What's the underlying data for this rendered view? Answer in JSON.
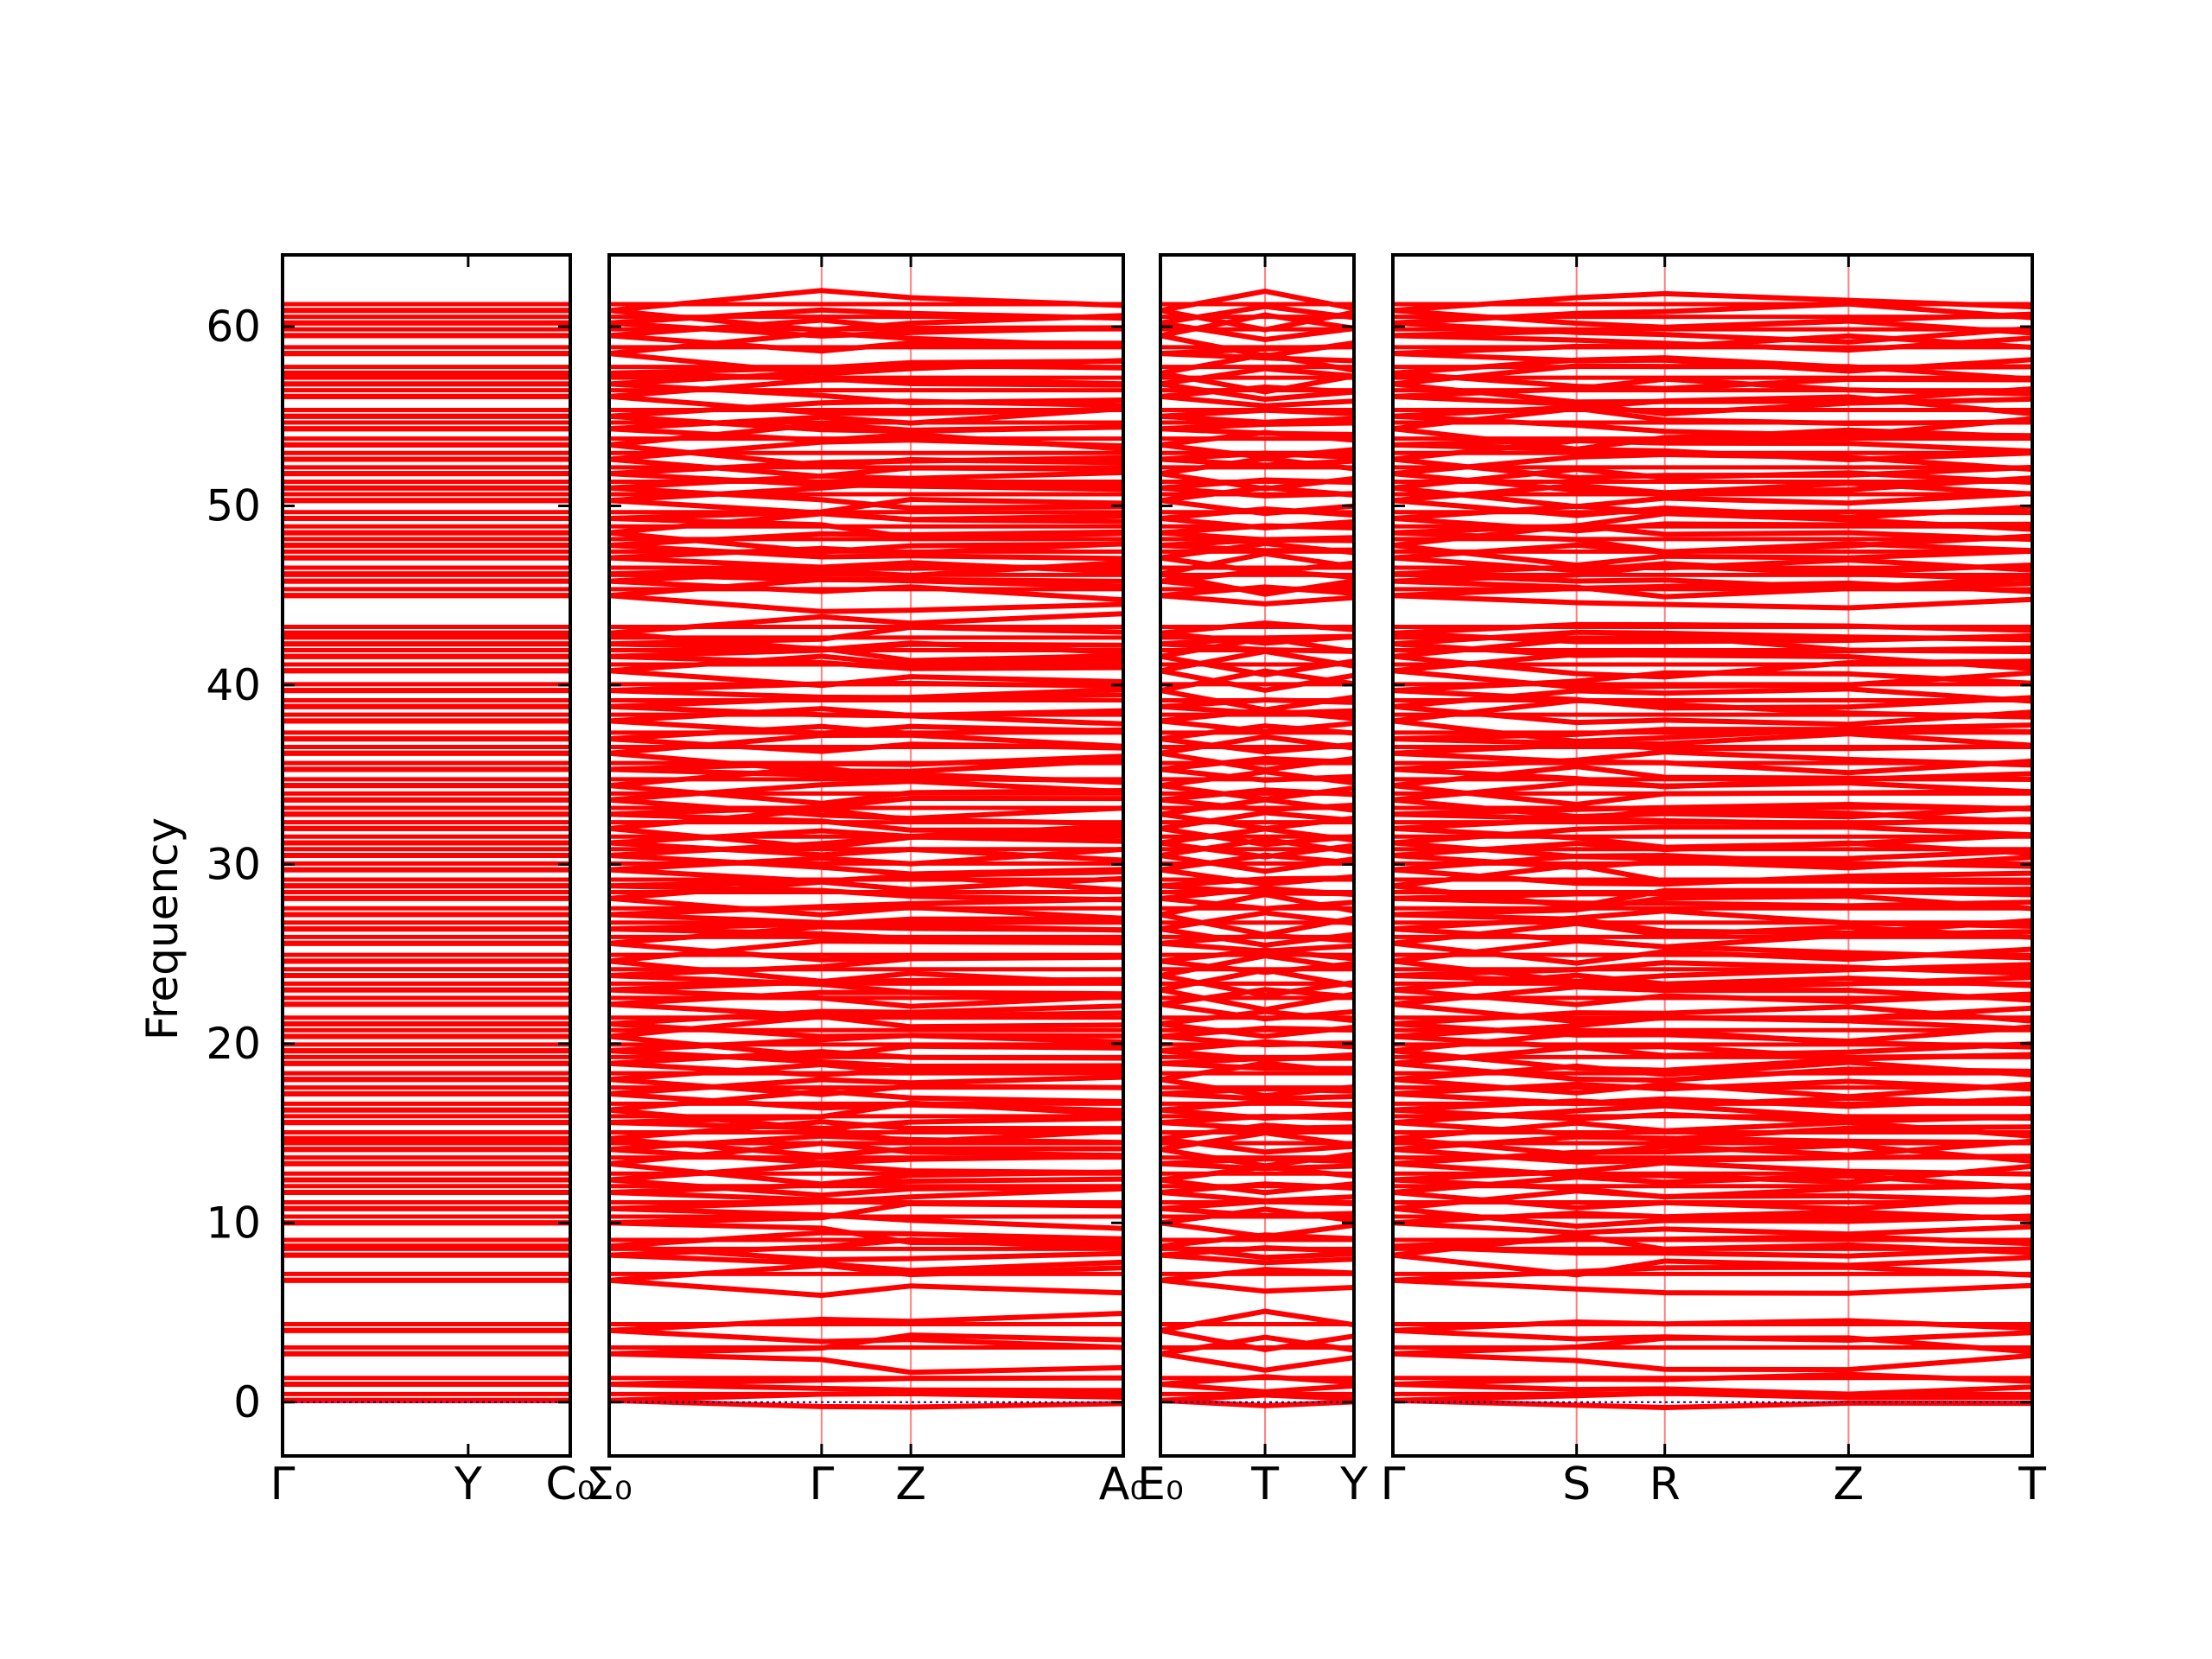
{
  "chart_data": {
    "type": "line",
    "title": "",
    "ylabel": "Frequency",
    "ylim": [
      -3,
      64
    ],
    "yticks": [
      0,
      10,
      20,
      30,
      40,
      50,
      60
    ],
    "grid": false,
    "colors": {
      "band": "#ff0000",
      "zero_line": "#000080",
      "frame": "#000000"
    },
    "panels": [
      {
        "path": [
          "Γ",
          "Y",
          "C₀"
        ],
        "point_positions": [
          0,
          1.0,
          1.55
        ],
        "special_x": [],
        "kinked": false
      },
      {
        "path": [
          "Σ₀",
          "Γ",
          "Z",
          "A₀"
        ],
        "point_positions": [
          0,
          1.0,
          1.42,
          2.42
        ],
        "special_x": [
          1,
          2
        ],
        "kinked": true
      },
      {
        "path": [
          "E₀",
          "T",
          "Y"
        ],
        "point_positions": [
          0,
          1.0,
          1.85
        ],
        "special_x": [
          1
        ],
        "kinked": true
      },
      {
        "path": [
          "Γ",
          "S",
          "R",
          "Z",
          "T"
        ],
        "point_positions": [
          0,
          1.0,
          1.48,
          2.48,
          3.48
        ],
        "special_x": [
          1,
          2,
          3
        ],
        "kinked": true
      }
    ],
    "bands_degenerate": [
      0.1,
      1.0,
      2.7,
      4.0,
      6.8,
      8.2,
      8.7,
      10.0,
      10.8,
      11.7,
      12.4,
      13.3,
      14.1,
      14.7,
      15.6,
      16.3,
      17.2,
      18.0,
      18.9,
      19.6,
      20.4,
      21.1,
      22.2,
      23.0,
      23.8,
      24.6,
      25.6,
      26.4,
      27.2,
      28.1,
      28.8,
      29.7,
      30.5,
      31.2,
      32.0,
      32.8,
      33.6,
      34.4,
      35.3,
      36.2,
      37.0,
      38.0,
      38.8,
      39.7,
      40.8,
      41.6,
      42.3,
      42.9,
      45.0,
      45.8,
      46.2,
      47.1,
      47.8,
      48.5,
      49.3,
      50.3,
      51.0,
      51.8,
      52.6,
      53.4,
      54.3,
      55.0,
      56.1,
      56.8,
      57.4,
      58.5,
      59.5,
      60.2,
      60.9
    ],
    "splitting_hint": "Bands that are degenerate at the Γ/Σ₀/E₀ side split into pairs past Γ, T and S, rejoining at Z/Y/R."
  }
}
